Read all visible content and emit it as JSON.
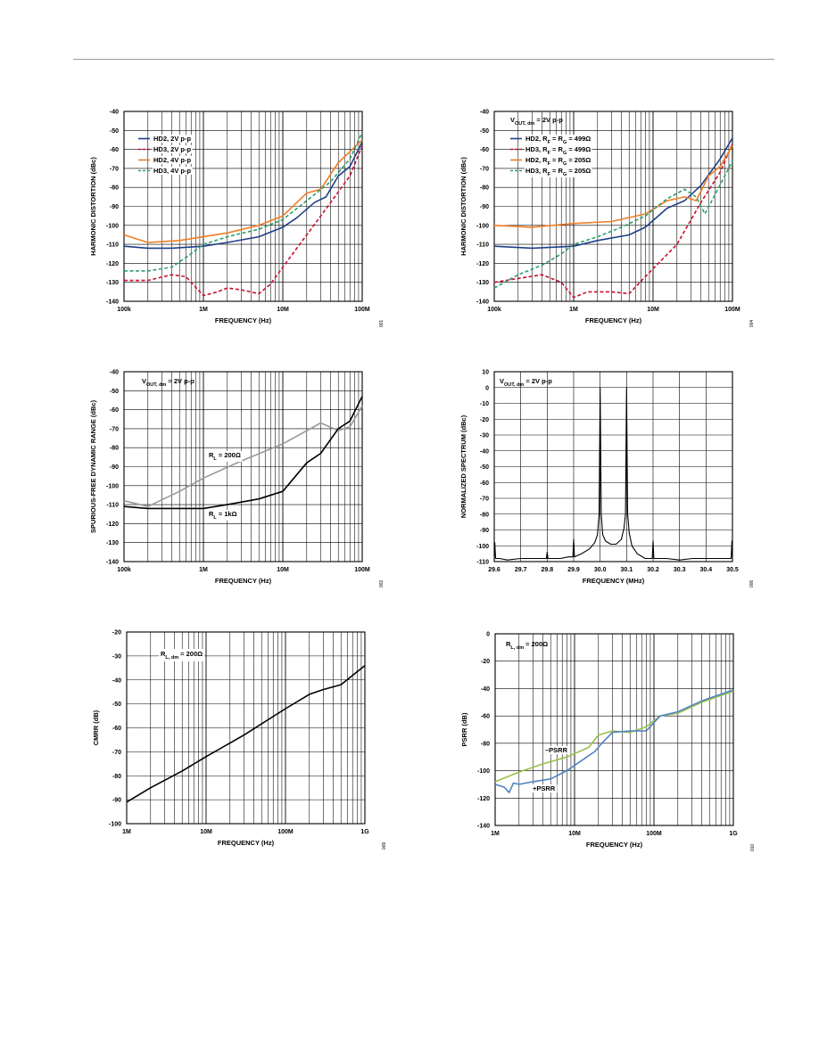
{
  "chart_data": [
    {
      "type": "line",
      "xlabel": "FREQUENCY (Hz)",
      "ylabel": "HARMONIC DISTORTION (dBc)",
      "x_scale": "log",
      "xlim": [
        100000,
        100000000
      ],
      "ylim": [
        -140,
        -40
      ],
      "yticks": [
        -40,
        -50,
        -60,
        -70,
        -80,
        -90,
        -100,
        -110,
        -120,
        -130,
        -140
      ],
      "x_ticks": [
        {
          "v": 100000,
          "t": "100k"
        },
        {
          "v": 1000000,
          "t": "1M"
        },
        {
          "v": 10000000,
          "t": "10M"
        },
        {
          "v": 100000000,
          "t": "100M"
        }
      ],
      "grid": true,
      "legend_position": "top-left",
      "code": "001",
      "series": [
        {
          "name": "HD2, 2V p-p",
          "color": "#1f3f86",
          "dash": "solid",
          "x": [
            100000,
            200000,
            400000,
            1000000,
            2000000,
            5000000,
            10000000,
            15000000,
            25000000,
            35000000,
            50000000,
            70000000,
            100000000
          ],
          "y": [
            -111,
            -112,
            -112,
            -111,
            -109,
            -106,
            -101,
            -96,
            -88,
            -85,
            -74,
            -69,
            -56
          ]
        },
        {
          "name": "HD3, 2V p-p",
          "color": "#c8102e",
          "dash": "dash",
          "x": [
            100000,
            200000,
            400000,
            600000,
            1000000,
            1500000,
            2000000,
            3000000,
            5000000,
            7000000,
            10000000,
            20000000,
            40000000,
            70000000,
            100000000
          ],
          "y": [
            -129,
            -129,
            -126,
            -127,
            -137,
            -135,
            -133,
            -134,
            -136,
            -131,
            -122,
            -105,
            -88,
            -74,
            -58
          ]
        },
        {
          "name": "HD2, 4V p-p",
          "color": "#f07e26",
          "dash": "solid",
          "x": [
            100000,
            200000,
            500000,
            1000000,
            2000000,
            5000000,
            10000000,
            20000000,
            30000000,
            50000000,
            100000000
          ],
          "y": [
            -105,
            -109,
            -108,
            -106,
            -104,
            -100,
            -95,
            -83,
            -81,
            -67,
            -55
          ]
        },
        {
          "name": "HD3, 4V p-p",
          "color": "#2e9e6f",
          "dash": "dash",
          "x": [
            100000,
            200000,
            400000,
            700000,
            1000000,
            2000000,
            5000000,
            10000000,
            20000000,
            40000000,
            70000000,
            100000000
          ],
          "y": [
            -124,
            -124,
            -122,
            -115,
            -110,
            -106,
            -102,
            -97,
            -87,
            -77,
            -65,
            -51
          ]
        }
      ]
    },
    {
      "type": "line",
      "xlabel": "FREQUENCY (Hz)",
      "ylabel": "HARMONIC DISTORTION (dBc)",
      "x_scale": "log",
      "xlim": [
        100000,
        100000000
      ],
      "ylim": [
        -140,
        -40
      ],
      "yticks": [
        -40,
        -50,
        -60,
        -70,
        -80,
        -90,
        -100,
        -110,
        -120,
        -130,
        -140
      ],
      "x_ticks": [
        {
          "v": 100000,
          "t": "100k"
        },
        {
          "v": 1000000,
          "t": "1M"
        },
        {
          "v": 10000000,
          "t": "10M"
        },
        {
          "v": 100000000,
          "t": "100M"
        }
      ],
      "grid": true,
      "legend_position": "top-left",
      "annotation": "VOUT, dm = 2V p-p",
      "code": "004",
      "series": [
        {
          "name": "HD2, RF = RG = 499Ω",
          "color": "#1f3f86",
          "dash": "solid",
          "x": [
            100000,
            300000,
            1000000,
            2000000,
            5000000,
            8000000,
            15000000,
            25000000,
            40000000,
            70000000,
            100000000
          ],
          "y": [
            -111,
            -112,
            -111,
            -108,
            -105,
            -101,
            -91,
            -87,
            -79,
            -65,
            -54
          ]
        },
        {
          "name": "HD3, RF = RG = 499Ω",
          "color": "#c8102e",
          "dash": "dash",
          "x": [
            100000,
            200000,
            400000,
            700000,
            1000000,
            1500000,
            3000000,
            5000000,
            8000000,
            20000000,
            40000000,
            70000000,
            100000000
          ],
          "y": [
            -130,
            -128,
            -126,
            -130,
            -138,
            -135,
            -135,
            -136,
            -127,
            -110,
            -88,
            -72,
            -57
          ]
        },
        {
          "name": "HD2, RF = RG = 205Ω",
          "color": "#f07e26",
          "dash": "solid",
          "x": [
            100000,
            300000,
            1000000,
            3000000,
            8000000,
            15000000,
            25000000,
            35000000,
            50000000,
            70000000,
            100000000
          ],
          "y": [
            -100,
            -101,
            -99,
            -98,
            -94,
            -87,
            -85,
            -87,
            -74,
            -69,
            -58
          ]
        },
        {
          "name": "HD3, RF = RG = 205Ω",
          "color": "#2e9e6f",
          "dash": "dash",
          "x": [
            100000,
            200000,
            400000,
            700000,
            1000000,
            2000000,
            4000000,
            8000000,
            15000000,
            25000000,
            35000000,
            45000000,
            60000000,
            80000000,
            100000000
          ],
          "y": [
            -133,
            -126,
            -121,
            -115,
            -110,
            -106,
            -101,
            -95,
            -86,
            -81,
            -85,
            -94,
            -84,
            -74,
            -66
          ]
        }
      ]
    },
    {
      "type": "line",
      "xlabel": "FREQUENCY (Hz)",
      "ylabel": "SPURIOUS-FREE DYNAMIC RANGE (dBc)",
      "x_scale": "log",
      "xlim": [
        100000,
        100000000
      ],
      "ylim": [
        -140,
        -40
      ],
      "yticks": [
        -40,
        -50,
        -60,
        -70,
        -80,
        -90,
        -100,
        -110,
        -120,
        -130,
        -140
      ],
      "x_ticks": [
        {
          "v": 100000,
          "t": "100k"
        },
        {
          "v": 1000000,
          "t": "1M"
        },
        {
          "v": 10000000,
          "t": "10M"
        },
        {
          "v": 100000000,
          "t": "100M"
        }
      ],
      "grid": true,
      "annotation": "VOUT, dm = 2V p-p",
      "labels": [
        "RL = 200Ω",
        "RL = 1kΩ"
      ],
      "code": "002",
      "series": [
        {
          "color": "#999999",
          "dash": "solid",
          "x": [
            100000,
            200000,
            500000,
            1000000,
            3000000,
            10000000,
            30000000,
            50000000,
            70000000,
            100000000
          ],
          "y": [
            -108,
            -111,
            -103,
            -96,
            -87,
            -78,
            -67,
            -71,
            -69,
            -58
          ]
        },
        {
          "color": "#000000",
          "dash": "solid",
          "x": [
            100000,
            200000,
            500000,
            1000000,
            2000000,
            5000000,
            10000000,
            20000000,
            30000000,
            50000000,
            70000000,
            100000000
          ],
          "y": [
            -111,
            -112,
            -112,
            -112,
            -110,
            -107,
            -103,
            -88,
            -83,
            -70,
            -66,
            -53
          ]
        }
      ]
    },
    {
      "type": "line",
      "xlabel": "FREQUENCY (MHz)",
      "ylabel": "NORMALIZED SPECTRUM (dBc)",
      "x_scale": "linear",
      "xlim": [
        29.6,
        30.5
      ],
      "ylim": [
        -110,
        10
      ],
      "yticks": [
        10,
        0,
        -10,
        -20,
        -30,
        -40,
        -50,
        -60,
        -70,
        -80,
        -90,
        -100,
        -110
      ],
      "x_ticks": [
        {
          "v": 29.6,
          "t": "29.6"
        },
        {
          "v": 29.7,
          "t": "29.7"
        },
        {
          "v": 29.8,
          "t": "29.8"
        },
        {
          "v": 29.9,
          "t": "29.9"
        },
        {
          "v": 30.0,
          "t": "30.0"
        },
        {
          "v": 30.1,
          "t": "30.1"
        },
        {
          "v": 30.2,
          "t": "30.2"
        },
        {
          "v": 30.3,
          "t": "30.3"
        },
        {
          "v": 30.4,
          "t": "30.4"
        },
        {
          "v": 30.5,
          "t": "30.5"
        }
      ],
      "grid": true,
      "annotation": "VOUT, dm = 2V p-p",
      "code": "006",
      "series": [
        {
          "color": "#000000",
          "dash": "solid",
          "x": [
            29.6,
            29.602,
            29.605,
            29.62,
            29.65,
            29.7,
            29.75,
            29.797,
            29.8,
            29.803,
            29.85,
            29.88,
            29.897,
            29.9,
            29.903,
            29.93,
            29.96,
            29.98,
            29.99,
            29.996,
            30.0,
            30.004,
            30.01,
            30.02,
            30.04,
            30.06,
            30.08,
            30.09,
            30.096,
            30.1,
            30.104,
            30.11,
            30.12,
            30.14,
            30.17,
            30.197,
            30.2,
            30.203,
            30.25,
            30.3,
            30.35,
            30.4,
            30.45,
            30.495,
            30.498,
            30.5
          ],
          "y": [
            -108,
            -98,
            -108,
            -108,
            -109,
            -108,
            -108,
            -108,
            -104,
            -108,
            -108,
            -107,
            -107,
            -96,
            -107,
            -105,
            -102,
            -98,
            -93,
            -80,
            0,
            -80,
            -93,
            -97,
            -99,
            -99,
            -96,
            -89,
            -80,
            0,
            -80,
            -92,
            -100,
            -105,
            -108,
            -108,
            -97,
            -108,
            -108,
            -109,
            -108,
            -108,
            -108,
            -108,
            -97,
            -108
          ]
        }
      ]
    },
    {
      "type": "line",
      "xlabel": "FREQUENCY (Hz)",
      "ylabel": "CMRR (dB)",
      "x_scale": "log",
      "xlim": [
        1000000,
        1000000000
      ],
      "ylim": [
        -100,
        -20
      ],
      "yticks": [
        -20,
        -30,
        -40,
        -50,
        -60,
        -70,
        -80,
        -90,
        -100
      ],
      "x_ticks": [
        {
          "v": 1000000,
          "t": "1M"
        },
        {
          "v": 10000000,
          "t": "10M"
        },
        {
          "v": 100000000,
          "t": "100M"
        },
        {
          "v": 1000000000,
          "t": "1G"
        }
      ],
      "grid": true,
      "annotation": "RL, dm = 200Ω",
      "code": "009",
      "series": [
        {
          "color": "#000000",
          "dash": "solid",
          "x": [
            1000000,
            2000000,
            5000000,
            10000000,
            30000000,
            100000000,
            200000000,
            300000000,
            500000000,
            1000000000
          ],
          "y": [
            -91,
            -85,
            -78,
            -72,
            -63,
            -52,
            -46,
            -44,
            -42,
            -34
          ]
        }
      ]
    },
    {
      "type": "line",
      "xlabel": "FREQUENCY (Hz)",
      "ylabel": "PSRR (dB)",
      "x_scale": "log",
      "xlim": [
        1000000,
        1000000000
      ],
      "ylim": [
        -140,
        0
      ],
      "yticks": [
        0,
        -20,
        -40,
        -60,
        -80,
        -100,
        -120,
        -140
      ],
      "x_ticks": [
        {
          "v": 1000000,
          "t": "1M"
        },
        {
          "v": 10000000,
          "t": "10M"
        },
        {
          "v": 100000000,
          "t": "100M"
        },
        {
          "v": 1000000000,
          "t": "1G"
        }
      ],
      "grid": true,
      "annotation": "RL, dm = 200Ω",
      "labels": [
        "–PSRR",
        "+PSRR"
      ],
      "code": "010",
      "series": [
        {
          "color": "#9bbf4a",
          "dash": "solid",
          "x": [
            1000000,
            2000000,
            4000000,
            8000000,
            15000000,
            20000000,
            30000000,
            50000000,
            80000000,
            120000000,
            200000000,
            400000000,
            1000000000
          ],
          "y": [
            -108,
            -101,
            -95,
            -90,
            -83,
            -74,
            -71,
            -72,
            -68,
            -60,
            -58,
            -50,
            -42
          ]
        },
        {
          "color": "#4f82c2",
          "dash": "solid",
          "x": [
            1000000,
            1300000,
            1500000,
            1700000,
            2000000,
            3000000,
            5000000,
            8000000,
            12000000,
            18000000,
            22000000,
            30000000,
            50000000,
            80000000,
            120000000,
            200000000,
            400000000,
            1000000000
          ],
          "y": [
            -110,
            -112,
            -116,
            -109,
            -110,
            -108,
            -106,
            -100,
            -93,
            -86,
            -80,
            -72,
            -71,
            -71,
            -60,
            -57,
            -49,
            -41
          ]
        }
      ]
    }
  ]
}
